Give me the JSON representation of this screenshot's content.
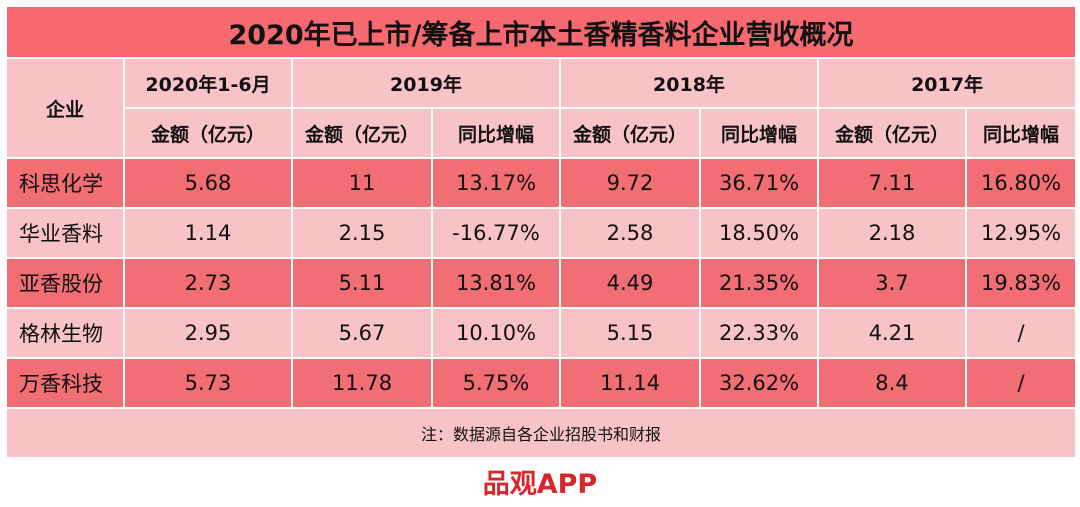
{
  "title": "2020年已上市/筹备上市本土香精香料企业营收概况",
  "headers": {
    "company": "企业",
    "periods": [
      "2020年1-6月",
      "2019年",
      "2018年",
      "2017年"
    ],
    "amount": "金额（亿元）",
    "growth": "同比增幅"
  },
  "rows": [
    {
      "name": "科思化学",
      "h1_2020": "5.68",
      "y2019": "11",
      "g2019": "13.17%",
      "y2018": "9.72",
      "g2018": "36.71%",
      "y2017": "7.11",
      "g2017": "16.80%"
    },
    {
      "name": "华业香料",
      "h1_2020": "1.14",
      "y2019": "2.15",
      "g2019": "-16.77%",
      "y2018": "2.58",
      "g2018": "18.50%",
      "y2017": "2.18",
      "g2017": "12.95%"
    },
    {
      "name": "亚香股份",
      "h1_2020": "2.73",
      "y2019": "5.11",
      "g2019": "13.81%",
      "y2018": "4.49",
      "g2018": "21.35%",
      "y2017": "3.7",
      "g2017": "19.83%"
    },
    {
      "name": "格林生物",
      "h1_2020": "2.95",
      "y2019": "5.67",
      "g2019": "10.10%",
      "y2018": "5.15",
      "g2018": "22.33%",
      "y2017": "4.21",
      "g2017": "/"
    },
    {
      "name": "万香科技",
      "h1_2020": "5.73",
      "y2019": "11.78",
      "g2019": "5.75%",
      "y2018": "11.14",
      "g2018": "32.62%",
      "y2017": "8.4",
      "g2017": "/"
    }
  ],
  "note": "注：数据源自各企业招股书和财报",
  "brand": "品观APP",
  "colors": {
    "title_bg": "#f6696f",
    "header_bg": "#f8c3c6",
    "row_dark": "#f06e74",
    "row_light": "#f8c3c6",
    "brand_text": "#d9262c"
  }
}
